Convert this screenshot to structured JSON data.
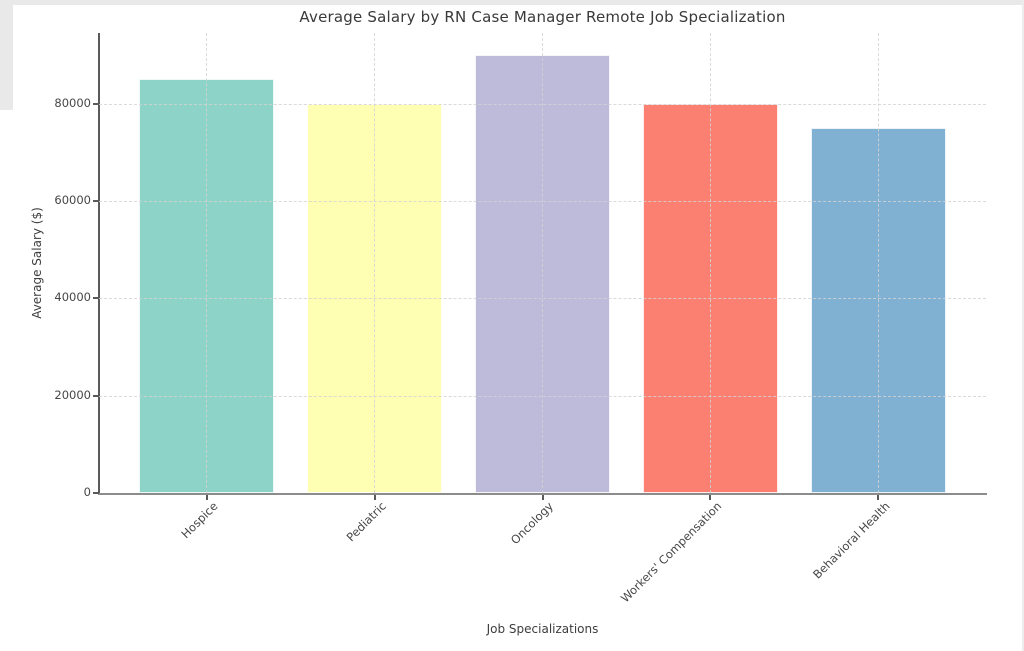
{
  "chart_data": {
    "type": "bar",
    "title": "Average Salary by RN Case Manager Remote Job Specialization",
    "xlabel": "Job Specializations",
    "ylabel": "Average Salary ($)",
    "categories": [
      "Hospice",
      "Pediatric",
      "Oncology",
      "Workers' Compensation",
      "Behavioral Health"
    ],
    "values": [
      85000,
      80000,
      90000,
      80000,
      75000
    ],
    "bar_colors": [
      "#8dd3c7",
      "#ffffb3",
      "#bebada",
      "#fb8072",
      "#80b1d3"
    ],
    "yticks": [
      0,
      20000,
      40000,
      60000,
      80000
    ],
    "ylim": [
      0,
      94500
    ],
    "grid": "dashed light-gray horizontal and vertical gridlines drawn over bars",
    "legend": "none",
    "text_color": "#3d3d3d",
    "spine_color": "#5a5a5a",
    "gridline_color": "#d4d4d4"
  }
}
